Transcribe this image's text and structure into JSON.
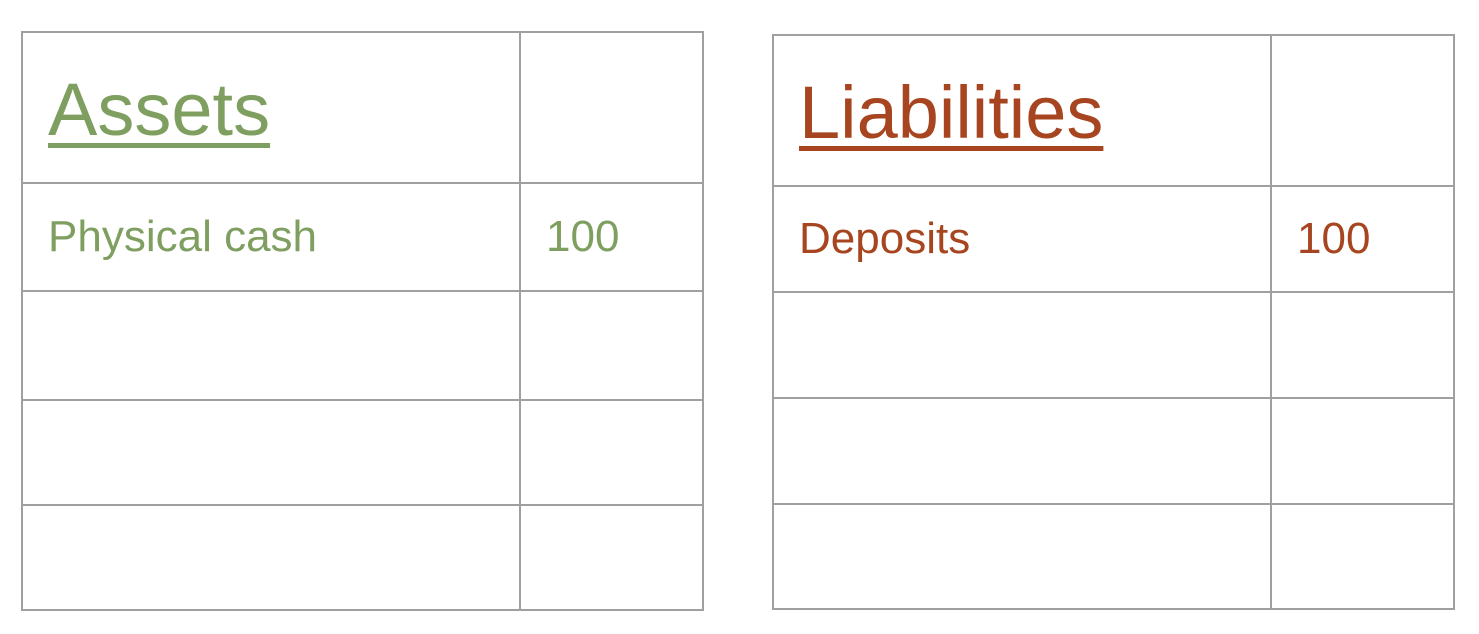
{
  "colors": {
    "assets": "#7f9f60",
    "liabilities": "#a6451f",
    "grid": "#a0a0a0"
  },
  "assets": {
    "title": "Assets",
    "rows": [
      {
        "label": "Physical cash",
        "value": "100"
      },
      {
        "label": "",
        "value": ""
      },
      {
        "label": "",
        "value": ""
      },
      {
        "label": "",
        "value": ""
      }
    ]
  },
  "liabilities": {
    "title": "Liabilities",
    "rows": [
      {
        "label": "Deposits",
        "value": "100"
      },
      {
        "label": "",
        "value": ""
      },
      {
        "label": "",
        "value": ""
      },
      {
        "label": "",
        "value": ""
      }
    ]
  }
}
